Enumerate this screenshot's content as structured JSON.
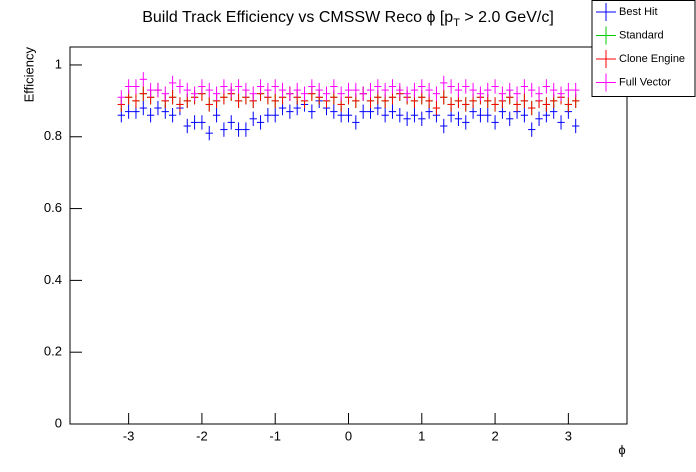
{
  "chart_data": {
    "type": "scatter",
    "title": [
      "Build Track Efficiency vs CMSSW Reco ϕ [p",
      "T",
      " > 2.0 GeV/c]"
    ],
    "x_label": "ϕ",
    "y_label": "Efficiency",
    "xlim": [
      -3.8,
      3.8
    ],
    "ylim": [
      0,
      1.05
    ],
    "xticks": [
      -3,
      -2,
      -1,
      0,
      1,
      2,
      3
    ],
    "yticks": [
      0,
      0.2,
      0.4,
      0.6,
      0.8,
      1
    ],
    "legend": "top-right",
    "xerr": 0.05,
    "x": [
      -3.1,
      -3.0,
      -2.9,
      -2.8,
      -2.7,
      -2.6,
      -2.5,
      -2.4,
      -2.3,
      -2.2,
      -2.1,
      -2.0,
      -1.9,
      -1.8,
      -1.7,
      -1.6,
      -1.5,
      -1.4,
      -1.3,
      -1.2,
      -1.1,
      -1.0,
      -0.9,
      -0.8,
      -0.7,
      -0.6,
      -0.5,
      -0.4,
      -0.3,
      -0.2,
      -0.1,
      0.0,
      0.1,
      0.2,
      0.3,
      0.4,
      0.5,
      0.6,
      0.7,
      0.8,
      0.9,
      1.0,
      1.1,
      1.2,
      1.3,
      1.4,
      1.5,
      1.6,
      1.7,
      1.8,
      1.9,
      2.0,
      2.1,
      2.2,
      2.3,
      2.4,
      2.5,
      2.6,
      2.7,
      2.8,
      2.9,
      3.0,
      3.1
    ],
    "series": [
      {
        "name": "Best Hit",
        "color": "#0000ff",
        "error": 0.02,
        "values": [
          0.86,
          0.87,
          0.87,
          0.88,
          0.86,
          0.88,
          0.87,
          0.86,
          0.88,
          0.83,
          0.84,
          0.84,
          0.81,
          0.86,
          0.82,
          0.84,
          0.82,
          0.82,
          0.85,
          0.84,
          0.86,
          0.86,
          0.88,
          0.87,
          0.88,
          0.89,
          0.87,
          0.9,
          0.88,
          0.87,
          0.86,
          0.86,
          0.84,
          0.87,
          0.87,
          0.88,
          0.86,
          0.87,
          0.86,
          0.85,
          0.86,
          0.85,
          0.87,
          0.86,
          0.83,
          0.86,
          0.85,
          0.84,
          0.87,
          0.86,
          0.86,
          0.84,
          0.87,
          0.85,
          0.87,
          0.86,
          0.82,
          0.85,
          0.86,
          0.87,
          0.84,
          0.87,
          0.83
        ]
      },
      {
        "name": "Standard",
        "color": "#00cc00",
        "error": 0.02,
        "values": [
          0.89,
          0.91,
          0.9,
          0.92,
          0.91,
          0.93,
          0.9,
          0.91,
          0.89,
          0.9,
          0.91,
          0.92,
          0.89,
          0.9,
          0.91,
          0.92,
          0.9,
          0.91,
          0.9,
          0.92,
          0.91,
          0.9,
          0.91,
          0.92,
          0.91,
          0.9,
          0.92,
          0.91,
          0.9,
          0.91,
          0.89,
          0.91,
          0.9,
          0.92,
          0.9,
          0.91,
          0.9,
          0.91,
          0.92,
          0.91,
          0.9,
          0.91,
          0.9,
          0.88,
          0.91,
          0.89,
          0.9,
          0.89,
          0.9,
          0.91,
          0.9,
          0.89,
          0.9,
          0.91,
          0.89,
          0.9,
          0.88,
          0.9,
          0.89,
          0.9,
          0.91,
          0.89,
          0.9
        ]
      },
      {
        "name": "Clone Engine",
        "color": "#ff0000",
        "error": 0.02,
        "values": [
          0.89,
          0.91,
          0.9,
          0.92,
          0.91,
          0.93,
          0.9,
          0.91,
          0.89,
          0.9,
          0.91,
          0.92,
          0.89,
          0.9,
          0.91,
          0.92,
          0.9,
          0.91,
          0.9,
          0.92,
          0.91,
          0.9,
          0.91,
          0.92,
          0.91,
          0.9,
          0.92,
          0.91,
          0.9,
          0.91,
          0.89,
          0.91,
          0.9,
          0.92,
          0.9,
          0.91,
          0.9,
          0.91,
          0.92,
          0.91,
          0.9,
          0.91,
          0.9,
          0.88,
          0.91,
          0.89,
          0.9,
          0.89,
          0.9,
          0.91,
          0.9,
          0.89,
          0.9,
          0.91,
          0.89,
          0.9,
          0.88,
          0.9,
          0.89,
          0.9,
          0.91,
          0.89,
          0.9
        ]
      },
      {
        "name": "Full Vector",
        "color": "#ff00ff",
        "error": 0.02,
        "values": [
          0.91,
          0.94,
          0.94,
          0.96,
          0.93,
          0.93,
          0.92,
          0.95,
          0.94,
          0.93,
          0.92,
          0.94,
          0.93,
          0.92,
          0.94,
          0.93,
          0.94,
          0.93,
          0.92,
          0.94,
          0.93,
          0.94,
          0.93,
          0.92,
          0.93,
          0.92,
          0.94,
          0.93,
          0.92,
          0.94,
          0.92,
          0.93,
          0.93,
          0.92,
          0.93,
          0.94,
          0.93,
          0.94,
          0.93,
          0.92,
          0.93,
          0.94,
          0.93,
          0.92,
          0.95,
          0.94,
          0.93,
          0.94,
          0.93,
          0.92,
          0.93,
          0.94,
          0.92,
          0.93,
          0.92,
          0.94,
          0.93,
          0.92,
          0.94,
          0.93,
          0.92,
          0.93,
          0.93
        ]
      }
    ]
  }
}
